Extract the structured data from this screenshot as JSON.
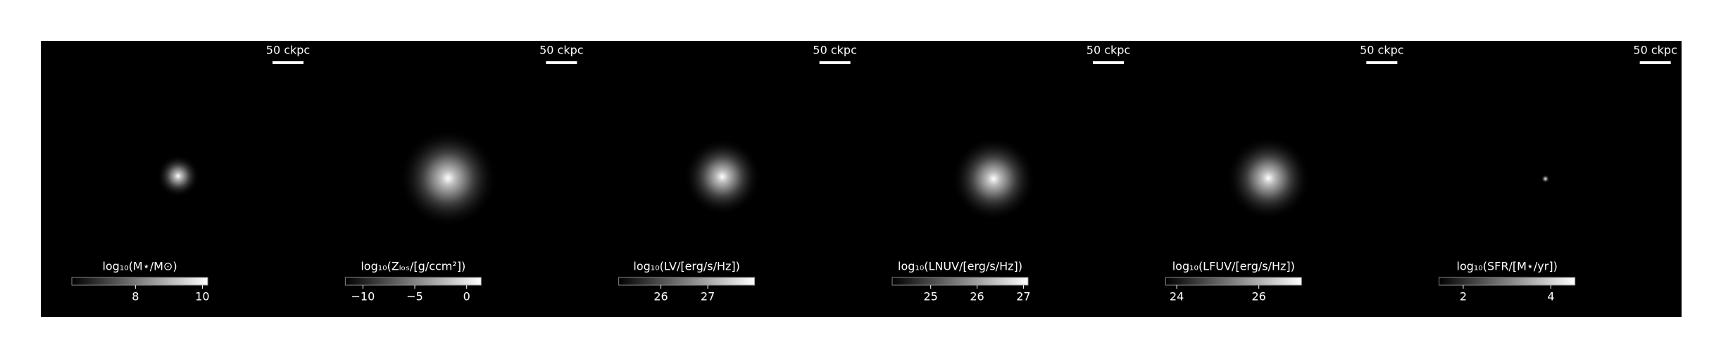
{
  "panels": [
    {
      "scale_label": "50 ckpc",
      "colorbar": {
        "label": "log₁₀(M⋆/M⊙)",
        "lim": [
          6.1,
          10.16
        ],
        "ticks": [
          8,
          10
        ]
      }
    },
    {
      "scale_label": "50 ckpc",
      "colorbar": {
        "label": "log₁₀(Zₗₒₛ/[g/ccm²])",
        "lim": [
          -11.7,
          1.4
        ],
        "ticks": [
          {
            "value": -10,
            "label": "−10"
          },
          {
            "value": -5,
            "label": "−5"
          },
          0
        ]
      }
    },
    {
      "scale_label": "50 ckpc",
      "colorbar": {
        "label": "log₁₀(LV/[erg/s/Hz])",
        "lim": [
          25.1,
          28.0
        ],
        "ticks": [
          26,
          27
        ]
      }
    },
    {
      "scale_label": "50 ckpc",
      "colorbar": {
        "label": "log₁₀(LNUV/[erg/s/Hz])",
        "lim": [
          24.17,
          27.1
        ],
        "ticks": [
          25,
          26,
          27
        ]
      }
    },
    {
      "scale_label": "50 ckpc",
      "colorbar": {
        "label": "log₁₀(LFUV/[erg/s/Hz])",
        "lim": [
          23.73,
          27.04
        ],
        "ticks": [
          24,
          26
        ]
      }
    },
    {
      "scale_label": "50 ckpc",
      "colorbar": {
        "label": "log₁₀(SFR/[M⋆/yr])",
        "lim": [
          1.45,
          4.55
        ],
        "ticks": [
          2,
          4
        ]
      }
    }
  ]
}
